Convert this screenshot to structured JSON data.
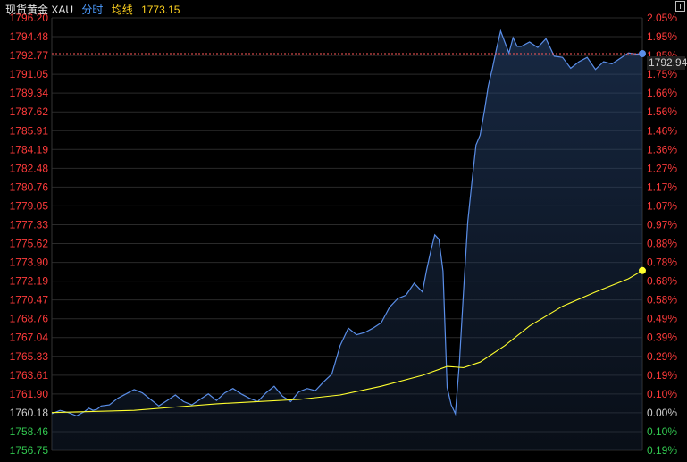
{
  "header": {
    "title": "现货黄金 XAU",
    "mode": "分时",
    "avg_label": "均线",
    "avg_value": "1773.15"
  },
  "colors": {
    "price_line": "#5a8ee8",
    "avg_line": "#ffff2e",
    "up": "#ff3b3b",
    "down": "#32c850",
    "grid": "#2a2a2a",
    "reference_line": "#ff5a5a",
    "badge_bg": "#1f1f1f",
    "badge_text": "#cfcfcf"
  },
  "chart_data": {
    "type": "area",
    "title": "现货黄金 XAU",
    "ylim": [
      1756.75,
      1796.2
    ],
    "base_price": 1760.18,
    "y_axis_left": [
      "1796.20",
      "1794.48",
      "1792.77",
      "1791.05",
      "1789.34",
      "1787.62",
      "1785.91",
      "1784.19",
      "1782.48",
      "1780.76",
      "1779.05",
      "1777.33",
      "1775.62",
      "1773.90",
      "1772.19",
      "1770.47",
      "1768.76",
      "1767.04",
      "1765.33",
      "1763.61",
      "1761.90",
      "1760.18",
      "1758.46",
      "1756.75"
    ],
    "y_axis_right": [
      "2.05%",
      "1.95%",
      "1.85%",
      "1.75%",
      "1.66%",
      "1.56%",
      "1.46%",
      "1.36%",
      "1.27%",
      "1.17%",
      "1.07%",
      "0.97%",
      "0.88%",
      "0.78%",
      "0.68%",
      "0.58%",
      "0.49%",
      "0.39%",
      "0.29%",
      "0.19%",
      "0.10%",
      "0.00%",
      "0.10%",
      "0.19%"
    ],
    "current_price": 1792.94,
    "current_price_label": "1792.94",
    "average_end": 1773.15,
    "series": [
      {
        "name": "分时",
        "x": [
          0,
          10,
          20,
          30,
          40,
          45,
          50,
          55,
          60,
          70,
          80,
          90,
          100,
          110,
          120,
          130,
          140,
          150,
          160,
          170,
          180,
          190,
          200,
          210,
          220,
          230,
          240,
          250,
          260,
          270,
          280,
          290,
          300,
          310,
          320,
          330,
          340,
          350,
          360,
          370,
          380,
          390,
          400,
          410,
          420,
          430,
          440,
          450,
          455,
          460,
          465,
          470,
          475,
          480,
          485,
          490,
          495,
          500,
          505,
          510,
          515,
          520,
          525,
          530,
          535,
          540,
          545,
          550,
          555,
          560,
          565,
          570,
          580,
          590,
          600,
          610,
          620,
          630,
          640,
          650,
          660,
          670,
          680,
          690,
          700,
          710,
          717
        ],
        "y": [
          1760.1,
          1760.4,
          1760.2,
          1759.9,
          1760.3,
          1760.6,
          1760.4,
          1760.5,
          1760.8,
          1760.9,
          1761.5,
          1761.9,
          1762.3,
          1762.0,
          1761.4,
          1760.8,
          1761.3,
          1761.8,
          1761.2,
          1760.9,
          1761.4,
          1761.9,
          1761.3,
          1762.0,
          1762.4,
          1761.9,
          1761.5,
          1761.2,
          1762.0,
          1762.6,
          1761.7,
          1761.2,
          1762.1,
          1762.4,
          1762.2,
          1763.0,
          1763.7,
          1766.3,
          1767.9,
          1767.3,
          1767.5,
          1767.9,
          1768.4,
          1769.8,
          1770.6,
          1770.9,
          1772.0,
          1771.2,
          1773.2,
          1774.9,
          1776.4,
          1776.0,
          1773.1,
          1762.5,
          1760.9,
          1760.1,
          1764.8,
          1771.3,
          1777.6,
          1781.2,
          1784.6,
          1785.5,
          1787.6,
          1790.0,
          1791.6,
          1793.4,
          1795.0,
          1794.0,
          1793.0,
          1794.4,
          1793.6,
          1793.6,
          1794.0,
          1793.5,
          1794.3,
          1792.7,
          1792.6,
          1791.6,
          1792.2,
          1792.6,
          1791.5,
          1792.2,
          1792.0,
          1792.5,
          1793.0,
          1792.9,
          1792.94
        ]
      },
      {
        "name": "均线",
        "x": [
          0,
          50,
          100,
          150,
          200,
          250,
          300,
          350,
          400,
          450,
          480,
          500,
          520,
          550,
          580,
          620,
          660,
          700,
          717
        ],
        "y": [
          1760.2,
          1760.3,
          1760.4,
          1760.7,
          1761.0,
          1761.2,
          1761.4,
          1761.8,
          1762.6,
          1763.6,
          1764.4,
          1764.3,
          1764.8,
          1766.3,
          1768.1,
          1769.9,
          1771.2,
          1772.4,
          1773.15
        ]
      }
    ]
  }
}
